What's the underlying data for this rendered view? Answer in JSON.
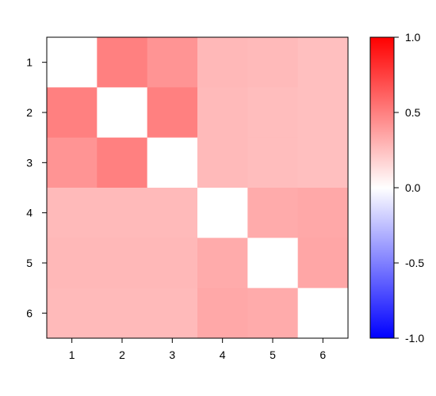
{
  "chart_data": {
    "type": "heatmap",
    "title": "",
    "xlabel": "",
    "ylabel": "",
    "row_labels": [
      "1",
      "2",
      "3",
      "4",
      "5",
      "6"
    ],
    "col_labels": [
      "1",
      "2",
      "3",
      "4",
      "5",
      "6"
    ],
    "matrix": [
      [
        0.0,
        0.5,
        0.42,
        0.28,
        0.27,
        0.25
      ],
      [
        0.5,
        0.0,
        0.5,
        0.27,
        0.26,
        0.25
      ],
      [
        0.42,
        0.5,
        0.0,
        0.27,
        0.26,
        0.25
      ],
      [
        0.27,
        0.27,
        0.27,
        0.0,
        0.33,
        0.34
      ],
      [
        0.28,
        0.28,
        0.28,
        0.33,
        0.0,
        0.35
      ],
      [
        0.27,
        0.27,
        0.27,
        0.34,
        0.33,
        0.0
      ]
    ],
    "color_scale": {
      "min": -1.0,
      "max": 1.0,
      "low_color": "#0000ff",
      "mid_color": "#ffffff",
      "high_color": "#ff0000",
      "tick_values": [
        1.0,
        0.5,
        0.0,
        -0.5,
        -1.0
      ],
      "tick_labels": [
        "1.0",
        "0.5",
        "0.0",
        "-0.5",
        "-1.0"
      ]
    },
    "legend_position": "right",
    "grid": false
  }
}
